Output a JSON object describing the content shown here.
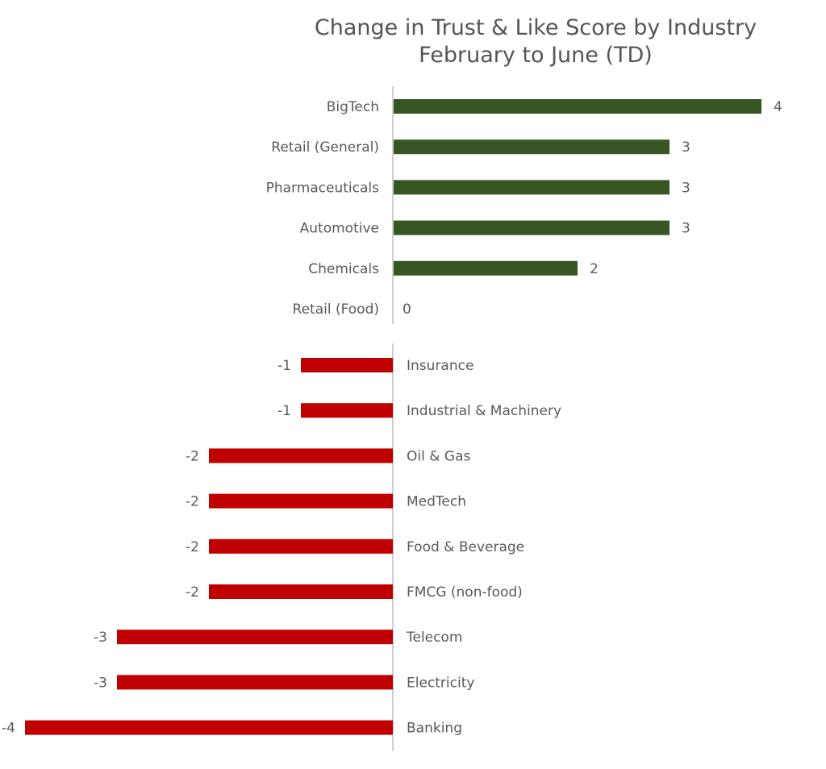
{
  "chart_data": [
    {
      "type": "bar",
      "orientation": "horizontal",
      "title": "Change in Trust & Like Score by Industry",
      "subtitle": "February to June (TD)",
      "categories": [
        "BigTech",
        "Retail (General)",
        "Pharmaceuticals",
        "Automotive",
        "Chemicals",
        "Retail (Food)"
      ],
      "values": [
        4,
        3,
        3,
        3,
        2,
        0
      ],
      "bar_color": "#375623",
      "data_labels": true,
      "grid": false,
      "legend": "none"
    },
    {
      "type": "bar",
      "orientation": "horizontal",
      "categories": [
        "Insurance",
        "Industrial & Machinery",
        "Oil & Gas",
        "MedTech",
        "Food & Beverage",
        "FMCG (non-food)",
        "Telecom",
        "Electricity",
        "Banking"
      ],
      "values": [
        -1,
        -1,
        -2,
        -2,
        -2,
        -2,
        -3,
        -3,
        -4
      ],
      "bar_color": "#c00000",
      "data_labels": true,
      "grid": false,
      "legend": "none"
    }
  ],
  "colors": {
    "axis": "#bfbfbf",
    "text": "#595959",
    "title": "#555555"
  }
}
